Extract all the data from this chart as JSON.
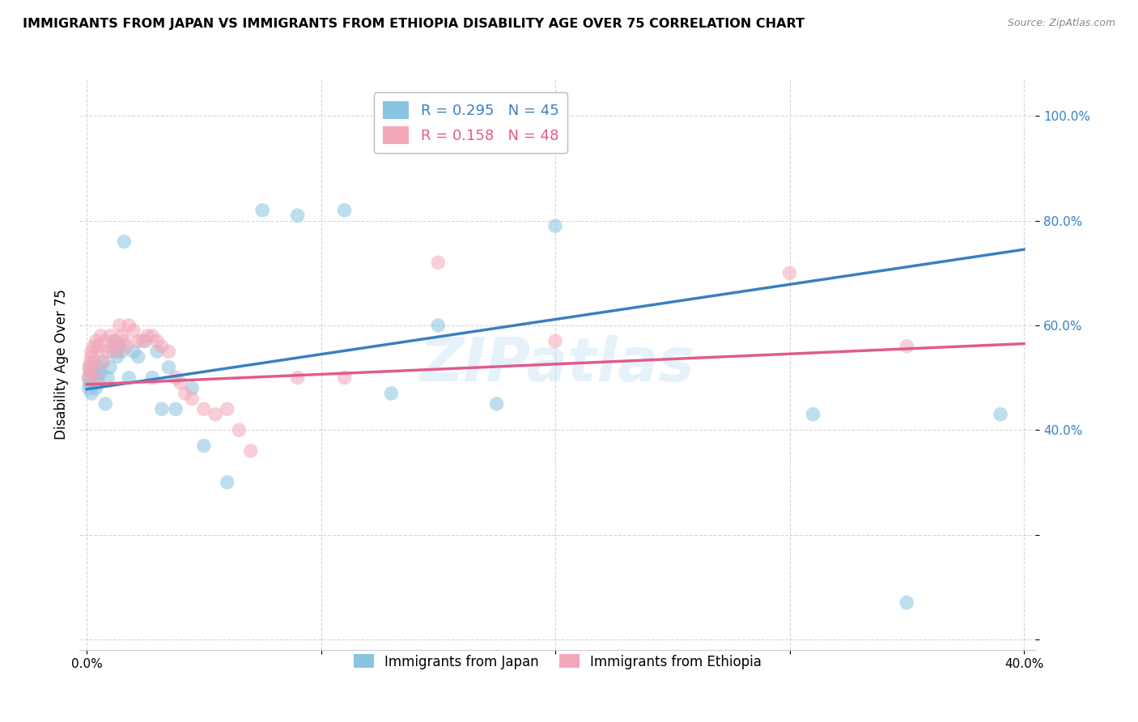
{
  "title": "IMMIGRANTS FROM JAPAN VS IMMIGRANTS FROM ETHIOPIA DISABILITY AGE OVER 75 CORRELATION CHART",
  "source": "Source: ZipAtlas.com",
  "ylabel": "Disability Age Over 75",
  "xlabel_japan": "Immigrants from Japan",
  "xlabel_ethiopia": "Immigrants from Ethiopia",
  "r_japan": 0.295,
  "n_japan": 45,
  "r_ethiopia": 0.158,
  "n_ethiopia": 48,
  "xlim": [
    -0.003,
    0.405
  ],
  "ylim": [
    -0.02,
    1.07
  ],
  "x_ticks": [
    0.0,
    0.1,
    0.2,
    0.3,
    0.4
  ],
  "x_tick_labels": [
    "0.0%",
    "",
    "",
    "",
    "40.0%"
  ],
  "y_ticks": [
    0.0,
    0.2,
    0.4,
    0.6,
    0.8,
    1.0
  ],
  "y_tick_labels": [
    "",
    "",
    "40.0%",
    "60.0%",
    "80.0%",
    "100.0%"
  ],
  "color_japan": "#89c4e1",
  "color_ethiopia": "#f4a7b9",
  "line_color_japan": "#3a7fc1",
  "line_color_ethiopia": "#e05c8a",
  "watermark": "ZIPatlas",
  "japan_x": [
    0.0008,
    0.001,
    0.0012,
    0.0015,
    0.002,
    0.002,
    0.003,
    0.003,
    0.004,
    0.004,
    0.005,
    0.005,
    0.006,
    0.007,
    0.008,
    0.009,
    0.01,
    0.011,
    0.012,
    0.013,
    0.014,
    0.015,
    0.016,
    0.018,
    0.02,
    0.022,
    0.025,
    0.028,
    0.03,
    0.032,
    0.035,
    0.038,
    0.045,
    0.05,
    0.06,
    0.075,
    0.09,
    0.11,
    0.13,
    0.15,
    0.175,
    0.2,
    0.31,
    0.35,
    0.39
  ],
  "japan_y": [
    0.48,
    0.5,
    0.49,
    0.52,
    0.47,
    0.51,
    0.5,
    0.53,
    0.48,
    0.51,
    0.52,
    0.49,
    0.51,
    0.53,
    0.45,
    0.5,
    0.52,
    0.55,
    0.57,
    0.54,
    0.56,
    0.55,
    0.76,
    0.5,
    0.55,
    0.54,
    0.57,
    0.5,
    0.55,
    0.44,
    0.52,
    0.44,
    0.48,
    0.37,
    0.3,
    0.82,
    0.81,
    0.82,
    0.47,
    0.6,
    0.45,
    0.79,
    0.43,
    0.07,
    0.43
  ],
  "ethiopia_x": [
    0.0008,
    0.001,
    0.0012,
    0.0015,
    0.002,
    0.002,
    0.003,
    0.003,
    0.004,
    0.004,
    0.005,
    0.005,
    0.006,
    0.007,
    0.008,
    0.009,
    0.01,
    0.011,
    0.012,
    0.013,
    0.014,
    0.015,
    0.016,
    0.017,
    0.018,
    0.02,
    0.022,
    0.024,
    0.026,
    0.028,
    0.03,
    0.032,
    0.035,
    0.038,
    0.04,
    0.042,
    0.045,
    0.05,
    0.055,
    0.06,
    0.065,
    0.07,
    0.09,
    0.11,
    0.15,
    0.2,
    0.3,
    0.35
  ],
  "ethiopia_y": [
    0.5,
    0.52,
    0.51,
    0.53,
    0.54,
    0.55,
    0.56,
    0.52,
    0.57,
    0.5,
    0.55,
    0.56,
    0.58,
    0.53,
    0.57,
    0.55,
    0.58,
    0.56,
    0.57,
    0.55,
    0.6,
    0.58,
    0.57,
    0.56,
    0.6,
    0.59,
    0.57,
    0.57,
    0.58,
    0.58,
    0.57,
    0.56,
    0.55,
    0.5,
    0.49,
    0.47,
    0.46,
    0.44,
    0.43,
    0.44,
    0.4,
    0.36,
    0.5,
    0.5,
    0.72,
    0.57,
    0.7,
    0.56
  ],
  "line_japan_x0": 0.0,
  "line_japan_y0": 0.478,
  "line_japan_x1": 0.4,
  "line_japan_y1": 0.745,
  "line_eth_x0": 0.0,
  "line_eth_y0": 0.487,
  "line_eth_x1": 0.4,
  "line_eth_y1": 0.565
}
